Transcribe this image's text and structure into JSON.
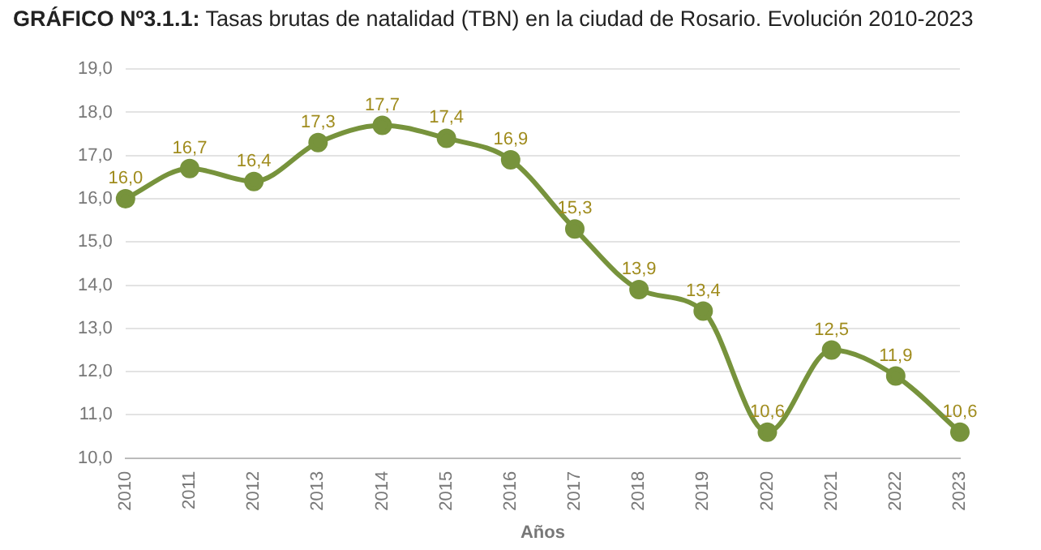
{
  "chart_data": {
    "type": "line",
    "title": "GRÁFICO Nº3.1.1: Tasas brutas de natalidad (TBN) en la ciudad de Rosario. Evolución 2010-2023",
    "xlabel": "Años",
    "categories": [
      "2010",
      "2011",
      "2012",
      "2013",
      "2014",
      "2015",
      "2016",
      "2017",
      "2018",
      "2019",
      "2020",
      "2021",
      "2022",
      "2023"
    ],
    "values": [
      16.0,
      16.7,
      16.4,
      17.3,
      17.7,
      17.4,
      16.9,
      15.3,
      13.9,
      13.4,
      10.6,
      12.5,
      11.9,
      10.6
    ],
    "value_labels": [
      "16,0",
      "16,7",
      "16,4",
      "17,3",
      "17,7",
      "17,4",
      "16,9",
      "15,3",
      "13,9",
      "13,4",
      "10,6",
      "12,5",
      "11,9",
      "10,6"
    ],
    "color": "#77933c",
    "ylim": [
      10,
      19
    ],
    "yticks": [
      {
        "value": 10,
        "label": "10,0"
      },
      {
        "value": 11,
        "label": "11,0"
      },
      {
        "value": 12,
        "label": "12,0"
      },
      {
        "value": 13,
        "label": "13,0"
      },
      {
        "value": 14,
        "label": "14,0"
      },
      {
        "value": 15,
        "label": "15,0"
      },
      {
        "value": 16,
        "label": "16,0"
      },
      {
        "value": 17,
        "label": "17,0"
      },
      {
        "value": 18,
        "label": "18,0"
      },
      {
        "value": 19,
        "label": "19,0"
      }
    ],
    "grid": "y",
    "marker": "circle",
    "line_style": "solid"
  }
}
